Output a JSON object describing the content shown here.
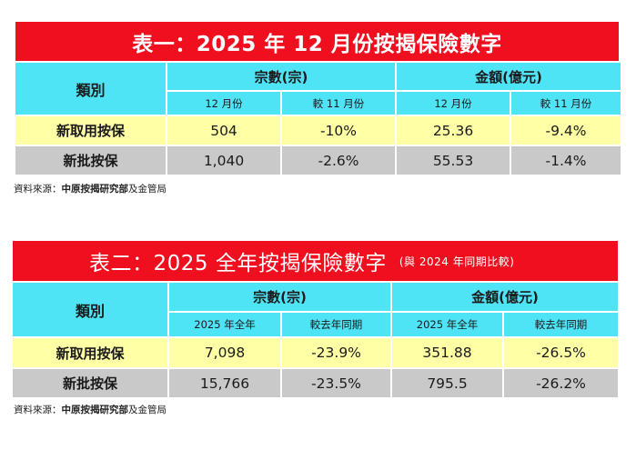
{
  "table1": {
    "title": "表一：2025 年 12 月份按揭保險數字",
    "category_header": "類別",
    "group1_header": "宗數(宗)",
    "group2_header": "金額(億元)",
    "sub_headers": [
      "12 月份",
      "較 11 月份",
      "12 月份",
      "較 11 月份"
    ],
    "rows": [
      {
        "label": "新取用按保",
        "values": [
          "504",
          "-10%",
          "25.36",
          "-9.4%"
        ]
      },
      {
        "label": "新批按保",
        "values": [
          "1,040",
          "-2.6%",
          "55.53",
          "-1.4%"
        ]
      }
    ],
    "source_prefix": "資料來源：",
    "source_bold": "中原按揭研究部",
    "source_suffix": "及金管局"
  },
  "table2": {
    "title": "表二：2025 全年按揭保險數字",
    "title_note": "(與 2024 年同期比較)",
    "category_header": "類別",
    "group1_header": "宗數(宗)",
    "group2_header": "金額(億元)",
    "sub_headers": [
      "2025 年全年",
      "較去年同期",
      "2025 年全年",
      "較去年同期"
    ],
    "rows": [
      {
        "label": "新取用按保",
        "values": [
          "7,098",
          "-23.9%",
          "351.88",
          "-26.5%"
        ]
      },
      {
        "label": "新批按保",
        "values": [
          "15,766",
          "-23.5%",
          "795.5",
          "-26.2%"
        ]
      }
    ],
    "source_prefix": "資料來源：",
    "source_bold": "中原按揭研究部",
    "source_suffix": "及金管局"
  },
  "colors": {
    "title_red": "#ef0f1f",
    "header_cyan": "#4fe3f6",
    "row_yellow": "#ffffa6",
    "row_gray": "#c9c9c9"
  }
}
